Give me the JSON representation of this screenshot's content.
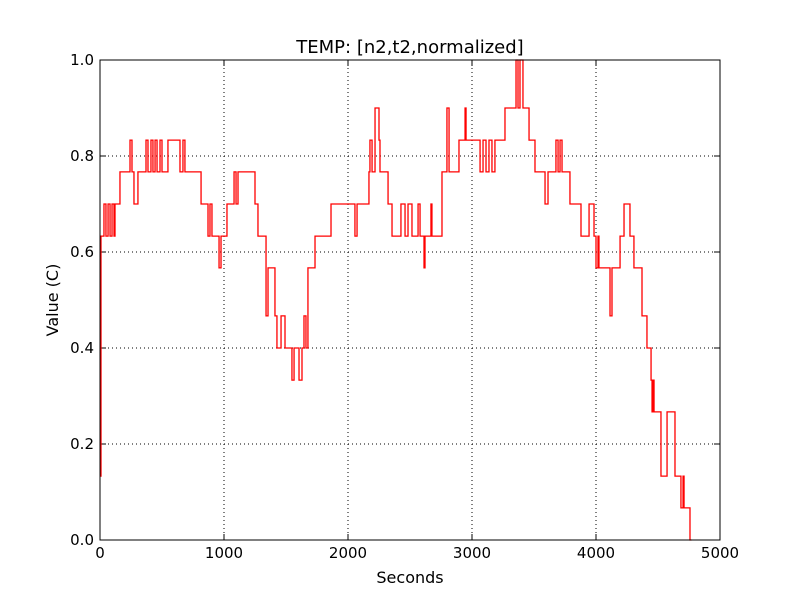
{
  "chart_data": {
    "type": "line",
    "drawstyle": "steps-post",
    "title": "TEMP: [n2,t2,normalized]",
    "xlabel": "Seconds",
    "ylabel": "Value (C)",
    "color": "#ff0000",
    "grid": true,
    "xlim": [
      0,
      5000
    ],
    "xticks": [
      0,
      1000,
      2000,
      3000,
      4000,
      5000
    ],
    "ylim": [
      0,
      1
    ],
    "yticks": [
      {
        "value": 0,
        "label": "0.0"
      },
      0.2,
      0.4,
      0.6,
      0.8,
      {
        "value": 1,
        "label": "1.0"
      }
    ],
    "x": [
      0,
      8,
      32,
      48,
      65,
      81,
      97,
      113,
      121,
      161,
      242,
      258,
      274,
      306,
      371,
      387,
      411,
      427,
      444,
      460,
      484,
      500,
      548,
      645,
      669,
      685,
      815,
      871,
      887,
      903,
      960,
      976,
      1024,
      1081,
      1097,
      1113,
      1250,
      1274,
      1339,
      1355,
      1411,
      1427,
      1460,
      1492,
      1548,
      1565,
      1605,
      1629,
      1645,
      1661,
      1677,
      1734,
      1863,
      2056,
      2073,
      2169,
      2177,
      2194,
      2218,
      2250,
      2258,
      2323,
      2355,
      2427,
      2460,
      2484,
      2516,
      2565,
      2581,
      2613,
      2621,
      2669,
      2677,
      2758,
      2798,
      2815,
      2895,
      2944,
      2952,
      3065,
      3089,
      3113,
      3137,
      3161,
      3185,
      3266,
      3355,
      3371,
      3387,
      3411,
      3460,
      3508,
      3589,
      3613,
      3677,
      3694,
      3710,
      3726,
      3790,
      3879,
      3944,
      3984,
      4000,
      4016,
      4024,
      4113,
      4129,
      4194,
      4226,
      4274,
      4306,
      4371,
      4411,
      4444,
      4452,
      4460,
      4468,
      4524,
      4573,
      4637,
      4685,
      4702,
      4710,
      4758,
      4770
    ],
    "values": [
      0.133,
      0.633,
      0.7,
      0.633,
      0.7,
      0.633,
      0.7,
      0.633,
      0.7,
      0.767,
      0.833,
      0.767,
      0.7,
      0.767,
      0.833,
      0.767,
      0.833,
      0.767,
      0.833,
      0.767,
      0.833,
      0.767,
      0.833,
      0.767,
      0.833,
      0.767,
      0.7,
      0.633,
      0.7,
      0.633,
      0.567,
      0.633,
      0.7,
      0.767,
      0.7,
      0.767,
      0.7,
      0.633,
      0.467,
      0.567,
      0.467,
      0.4,
      0.467,
      0.4,
      0.333,
      0.4,
      0.333,
      0.4,
      0.467,
      0.4,
      0.567,
      0.633,
      0.7,
      0.633,
      0.7,
      0.767,
      0.833,
      0.767,
      0.9,
      0.833,
      0.767,
      0.7,
      0.633,
      0.7,
      0.633,
      0.7,
      0.633,
      0.7,
      0.633,
      0.567,
      0.633,
      0.7,
      0.633,
      0.767,
      0.9,
      0.767,
      0.833,
      0.9,
      0.833,
      0.767,
      0.833,
      0.767,
      0.833,
      0.767,
      0.833,
      0.9,
      1.0,
      0.9,
      1.0,
      0.9,
      0.833,
      0.767,
      0.7,
      0.767,
      0.833,
      0.767,
      0.833,
      0.767,
      0.7,
      0.633,
      0.7,
      0.633,
      0.567,
      0.633,
      0.567,
      0.467,
      0.567,
      0.633,
      0.7,
      0.633,
      0.567,
      0.467,
      0.4,
      0.333,
      0.267,
      0.333,
      0.267,
      0.133,
      0.267,
      0.133,
      0.067,
      0.133,
      0.067,
      0.0,
      0.0
    ]
  }
}
